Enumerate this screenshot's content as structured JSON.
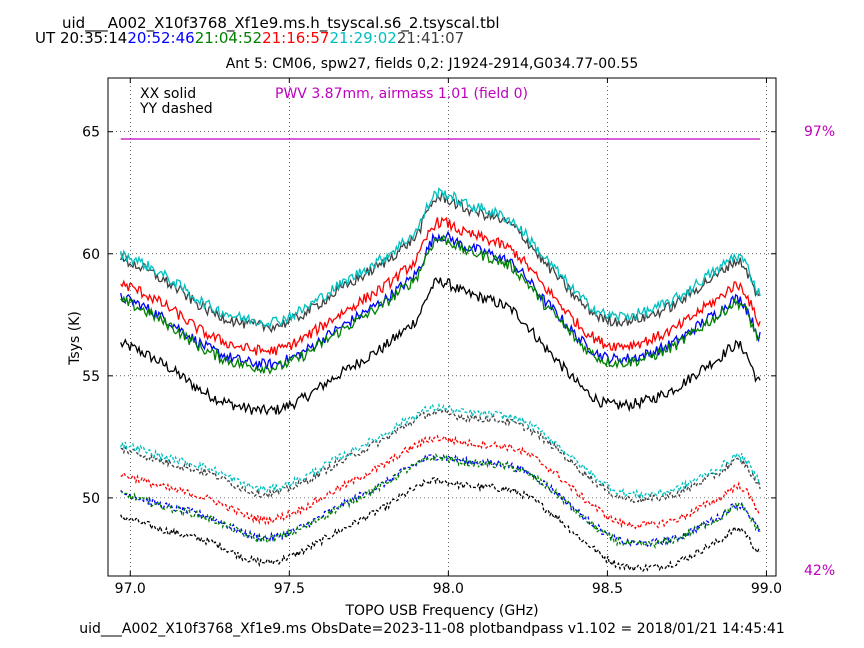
{
  "header": {
    "file_title": "uid___A002_X10f3768_Xf1e9.ms.h_tsyscal.s6_2.tsyscal.tbl",
    "ut_label": "UT",
    "times": [
      {
        "text": "20:35:14",
        "color": "#000000"
      },
      {
        "text": "20:52:46",
        "color": "#0000ff"
      },
      {
        "text": "21:04:52",
        "color": "#008000"
      },
      {
        "text": "21:16:57",
        "color": "#ff0000"
      },
      {
        "text": "21:29:02",
        "color": "#00bfbf"
      },
      {
        "text": "21:41:07",
        "color": "#404040"
      }
    ]
  },
  "footer": "uid___A002_X10f3768_Xf1e9.ms  ObsDate=2023-11-08   plotbandpass v1.102 = 2018/01/21 14:45:41",
  "chart_data": {
    "type": "line",
    "title": "Ant 5: CM06,  spw27,  fields 0,2: J1924-2914,G034.77-00.55",
    "xlabel": "TOPO USB Frequency (GHz)",
    "ylabel": "Tsys (K)",
    "xlim": [
      96.93,
      99.03
    ],
    "ylim": [
      46.8,
      67.2
    ],
    "xticks": [
      97.0,
      97.5,
      98.0,
      98.5,
      99.0
    ],
    "xtick_labels": [
      "97.0",
      "97.5",
      "98.0",
      "98.5",
      "99.0"
    ],
    "yticks": [
      50,
      55,
      60,
      65
    ],
    "ytick_labels": [
      "50",
      "55",
      "60",
      "65"
    ],
    "grid": true,
    "legend": {
      "solid_label": "XX solid",
      "dashed_label": "YY dashed",
      "placement": "top-left"
    },
    "pwv_annotation": {
      "text": "PWV 3.87mm, airmass 1.01 (field 0)",
      "color": "#bf00bf"
    },
    "transmission": {
      "line_value": 64.7,
      "top_label": "97%",
      "bottom_label": "42%",
      "color": "#bf00bf"
    },
    "profile_x": [
      96.97,
      97.1,
      97.25,
      97.4,
      97.5,
      97.65,
      97.8,
      97.9,
      97.96,
      98.05,
      98.2,
      98.3,
      98.45,
      98.55,
      98.7,
      98.85,
      98.92,
      98.98
    ],
    "xx_profile": [
      59.5,
      58.7,
      57.4,
      56.8,
      57.0,
      58.2,
      59.4,
      60.5,
      62.0,
      61.6,
      60.9,
      59.4,
      57.4,
      57.0,
      57.6,
      58.9,
      59.4,
      57.9
    ],
    "yy_profile": [
      51.8,
      51.3,
      50.8,
      50.0,
      50.2,
      51.2,
      52.2,
      53.0,
      53.3,
      53.1,
      52.9,
      52.2,
      50.6,
      49.8,
      49.9,
      50.8,
      51.3,
      50.3
    ],
    "series": [
      {
        "name": "20:35:14",
        "color": "#000000",
        "xx_offset": -3.2,
        "yy_offset": -2.6
      },
      {
        "name": "20:52:46",
        "color": "#0000ff",
        "xx_offset": -1.3,
        "yy_offset": -1.6
      },
      {
        "name": "21:04:52",
        "color": "#008000",
        "xx_offset": -1.45,
        "yy_offset": -1.65
      },
      {
        "name": "21:16:57",
        "color": "#ff0000",
        "xx_offset": -0.75,
        "yy_offset": -0.85
      },
      {
        "name": "21:29:02",
        "color": "#00bfbf",
        "xx_offset": 0.45,
        "yy_offset": 0.4
      },
      {
        "name": "21:41:07",
        "color": "#404040",
        "xx_offset": 0.25,
        "yy_offset": 0.2
      }
    ]
  }
}
